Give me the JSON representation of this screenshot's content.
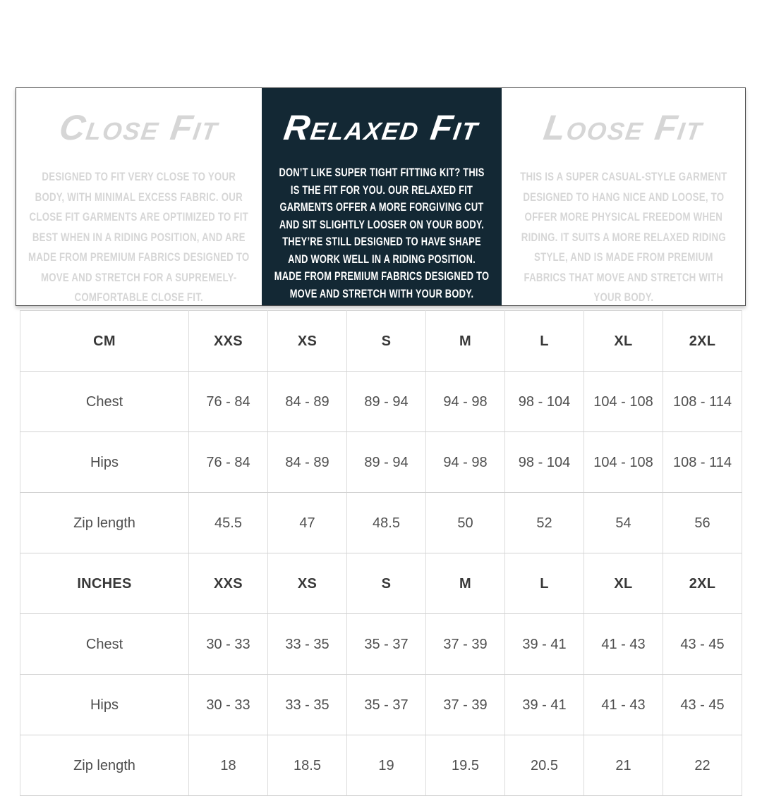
{
  "fits": [
    {
      "title": "Close Fit",
      "body": "DESIGNED TO FIT VERY CLOSE TO YOUR BODY, WITH MINIMAL EXCESS FABRIC. OUR CLOSE FIT GARMENTS ARE OPTIMIZED TO FIT BEST WHEN IN A RIDING POSITION, AND ARE MADE FROM PREMIUM FABRICS DESIGNED TO MOVE AND STRETCH FOR A SUPREMELY-COMFORTABLE CLOSE FIT.",
      "highlighted": false
    },
    {
      "title": "Relaxed Fit",
      "body": "DON’T LIKE SUPER TIGHT FITTING KIT? THIS IS THE FIT FOR YOU. OUR RELAXED FIT GARMENTS OFFER A MORE FORGIVING CUT AND SIT SLIGHTLY LOOSER ON YOUR BODY. THEY’RE STILL DESIGNED TO HAVE SHAPE AND WORK WELL IN A RIDING POSITION. MADE FROM PREMIUM FABRICS DESIGNED TO MOVE AND STRETCH WITH YOUR BODY.",
      "highlighted": true
    },
    {
      "title": "Loose Fit",
      "body": "THIS IS A SUPER CASUAL-STYLE GARMENT DESIGNED TO HANG NICE AND LOOSE, TO OFFER MORE PHYSICAL FREEDOM WHEN RIDING. IT SUITS A MORE RELAXED RIDING STYLE, AND IS MADE FROM PREMIUM FABRICS THAT MOVE AND STRETCH WITH YOUR BODY.",
      "highlighted": false
    }
  ],
  "size_chart": {
    "sections": [
      {
        "unit_label": "CM",
        "sizes": [
          "XXS",
          "XS",
          "S",
          "M",
          "L",
          "XL",
          "2XL"
        ],
        "rows": [
          {
            "label": "Chest",
            "values": [
              "76 - 84",
              "84 - 89",
              "89 - 94",
              "94 - 98",
              "98 - 104",
              "104 - 108",
              "108 - 114"
            ]
          },
          {
            "label": "Hips",
            "values": [
              "76 - 84",
              "84 - 89",
              "89 - 94",
              "94 - 98",
              "98 - 104",
              "104 - 108",
              "108 - 114"
            ]
          },
          {
            "label": "Zip length",
            "values": [
              "45.5",
              "47",
              "48.5",
              "50",
              "52",
              "54",
              "56"
            ]
          }
        ]
      },
      {
        "unit_label": "INCHES",
        "sizes": [
          "XXS",
          "XS",
          "S",
          "M",
          "L",
          "XL",
          "2XL"
        ],
        "rows": [
          {
            "label": "Chest",
            "values": [
              "30 - 33",
              "33 - 35",
              "35 - 37",
              "37 - 39",
              "39 - 41",
              "41 - 43",
              "43 - 45"
            ]
          },
          {
            "label": "Hips",
            "values": [
              "30 - 33",
              "33 - 35",
              "35 - 37",
              "37 - 39",
              "39 - 41",
              "41 - 43",
              "43 - 45"
            ]
          },
          {
            "label": "Zip length",
            "values": [
              "18",
              "18.5",
              "19",
              "19.5",
              "20.5",
              "21",
              "22"
            ]
          }
        ]
      }
    ]
  },
  "colors": {
    "highlight_bg": "#132834",
    "muted_text": "#d6d6d6",
    "table_text": "#4f4f4f",
    "table_border": "#dcdcdc"
  }
}
